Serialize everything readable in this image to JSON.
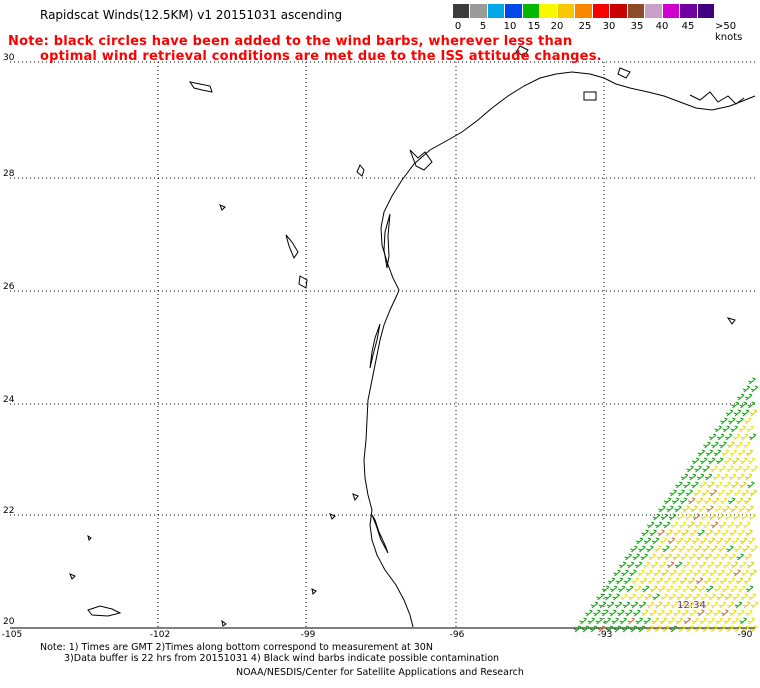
{
  "title": "Rapidscat Winds(12.5KM) v1 20151031 ascending",
  "note_line1": "Note: black circles have been added to the wind barbs, wherever less than",
  "note_line2": "optimal wind retrieval conditions are met due to the ISS attitude changes.",
  "color_scale": {
    "colors": [
      "#3c3c3c",
      "#9a9a9a",
      "#00a8e8",
      "#0048e8",
      "#00b800",
      "#f8f800",
      "#f8c800",
      "#f88800",
      "#f80000",
      "#c80000",
      "#8c4a28",
      "#c8a0c8",
      "#d000d0",
      "#7000a0",
      "#400080"
    ],
    "labels": [
      "0",
      "5",
      "10",
      "15",
      "20",
      "25",
      "30",
      "35",
      "40",
      "45",
      ">50 knots"
    ]
  },
  "axes": {
    "lat_labels": [
      "30",
      "28",
      "26",
      "24",
      "22",
      "20"
    ],
    "lon_labels": [
      "-105",
      "-102",
      "-99",
      "-96",
      "-93",
      "-90"
    ]
  },
  "timestamp": "12:34",
  "footer": {
    "line1": "Note: 1) Times are GMT 2)Times along bottom correspond to measurement at 30N",
    "line2": "3)Data buffer is 22 hrs from 20151031 4) Black wind barbs indicate possible contamination",
    "line3": "NOAA/NESDIS/Center for Satellite Applications and Research"
  }
}
